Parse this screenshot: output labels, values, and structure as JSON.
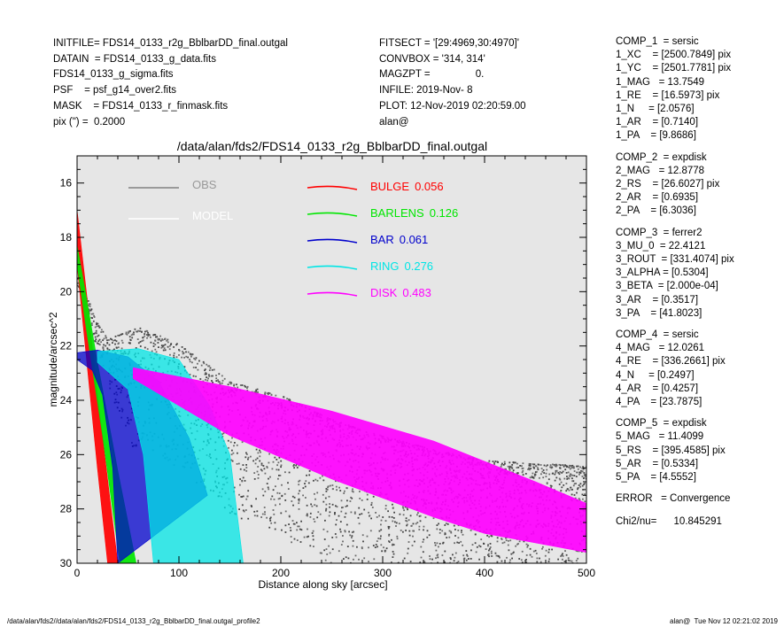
{
  "header_left": [
    "INITFILE= FDS14_0133_r2g_BblbarDD_final.outgal",
    "DATAIN  = FDS14_0133_g_data.fits",
    "FDS14_0133_g_sigma.fits",
    "PSF    = psf_g14_over2.fits",
    "MASK    = FDS14_0133_r_finmask.fits",
    "pix (\") =  0.2000"
  ],
  "header_mid": [
    "FITSECT = '[29:4969,30:4970]'",
    "CONVBOX = '314, 314'",
    "MAGZPT =                0.",
    "INFILE: 2019-Nov- 8",
    "PLOT: 12-Nov-2019 02:20:59.00",
    "alan@"
  ],
  "components": [
    [
      "COMP_1  = sersic",
      "1_XC    = [2500.7849] pix",
      "1_YC    = [2501.7781] pix",
      "1_MAG   = 13.7549",
      "1_RE    = [16.5973] pix",
      "1_N     = [2.0576]",
      "1_AR    = [0.7140]",
      "1_PA    = [9.8686]"
    ],
    [
      "COMP_2  = expdisk",
      "2_MAG   = 12.8778",
      "2_RS    = [26.6027] pix",
      "2_AR    = [0.6935]",
      "2_PA    = [6.3036]"
    ],
    [
      "COMP_3  = ferrer2",
      "3_MU_0  = 22.4121",
      "3_ROUT  = [331.4074] pix",
      "3_ALPHA = [0.5304]",
      "3_BETA  = [2.000e-04]",
      "3_AR    = [0.3517]",
      "3_PA    = [41.8023]"
    ],
    [
      "COMP_4  = sersic",
      "4_MAG   = 12.0261",
      "4_RE    = [336.2661] pix",
      "4_N     = [0.2497]",
      "4_AR    = [0.4257]",
      "4_PA    = [23.7875]"
    ],
    [
      "COMP_5  = expdisk",
      "5_MAG   = 11.4099",
      "5_RS    = [395.4585] pix",
      "5_AR    = [0.5334]",
      "5_PA    = [4.5552]"
    ]
  ],
  "error_line": "ERROR   = Convergence",
  "chi_line": "Chi2/nu=      10.845291",
  "footer_left": "/data/alan/fds2//data/alan/fds2/FDS14_0133_r2g_BblbarDD_final.outgal_profile2",
  "footer_right": "alan@  Tue Nov 12 02:21:02 2019",
  "chart_data": {
    "type": "scatter",
    "title": "/data/alan/fds2/FDS14_0133_r2g_BblbarDD_final.outgal",
    "xlabel": "Distance along sky [arcsec]",
    "ylabel": "magnitude/arcsec^2",
    "xlim": [
      0,
      500
    ],
    "ylim": [
      30,
      15
    ],
    "y_inverted": true,
    "xticks": [
      "0",
      "100",
      "200",
      "300",
      "400",
      "500"
    ],
    "yticks": [
      "16",
      "18",
      "20",
      "22",
      "24",
      "26",
      "28",
      "30"
    ],
    "background": "#e6e6e6",
    "legend_placement": "top",
    "legend_left": [
      {
        "label": "OBS",
        "color": "#808080"
      },
      {
        "label": "MODEL",
        "color": "#ffffff"
      }
    ],
    "legend_right": [
      {
        "label": "BULGE",
        "fraction": "0.056",
        "color": "#ff0000"
      },
      {
        "label": "BARLENS",
        "fraction": "0.126",
        "color": "#00e600"
      },
      {
        "label": "BAR",
        "fraction": "0.061",
        "color": "#0000cc"
      },
      {
        "label": "RING",
        "fraction": "0.276",
        "color": "#00e5e5"
      },
      {
        "label": "DISK",
        "fraction": "0.483",
        "color": "#ff00ff"
      }
    ],
    "series": [
      {
        "name": "BULGE",
        "color": "#ff0000",
        "upper": [
          [
            0,
            17.0
          ],
          [
            10,
            20.3
          ],
          [
            20,
            23.8
          ],
          [
            35,
            28.5
          ],
          [
            40,
            30
          ]
        ],
        "lower": [
          [
            0,
            19.0
          ],
          [
            20,
            26.5
          ],
          [
            30,
            30
          ]
        ]
      },
      {
        "name": "BARLENS",
        "color": "#00e600",
        "upper": [
          [
            0,
            18.3
          ],
          [
            10,
            20.4
          ],
          [
            20,
            22.6
          ],
          [
            40,
            26.6
          ],
          [
            58,
            30
          ]
        ],
        "lower": [
          [
            0,
            19.0
          ],
          [
            10,
            21.6
          ],
          [
            25,
            25.3
          ],
          [
            42,
            30
          ]
        ]
      },
      {
        "name": "BAR",
        "color": "#0000cc",
        "upper": [
          [
            0,
            22.25
          ],
          [
            20,
            22.15
          ],
          [
            50,
            22.4
          ],
          [
            80,
            23.3
          ],
          [
            110,
            25.4
          ],
          [
            128,
            27.5
          ]
        ],
        "lower": [
          [
            0,
            22.5
          ],
          [
            15,
            22.9
          ],
          [
            25,
            23.8
          ],
          [
            35,
            26.5
          ],
          [
            40,
            30
          ]
        ]
      },
      {
        "name": "RING",
        "color": "#00e5e5",
        "upper": [
          [
            20,
            22.2
          ],
          [
            60,
            22.1
          ],
          [
            100,
            22.5
          ],
          [
            130,
            24.2
          ],
          [
            150,
            26.0
          ],
          [
            163,
            30
          ]
        ],
        "lower": [
          [
            20,
            22.6
          ],
          [
            50,
            23.6
          ],
          [
            65,
            26.0
          ],
          [
            75,
            30
          ]
        ]
      },
      {
        "name": "DISK",
        "color": "#ff00ff",
        "upper": [
          [
            55,
            22.8
          ],
          [
            150,
            23.5
          ],
          [
            250,
            24.4
          ],
          [
            350,
            25.5
          ],
          [
            450,
            27.0
          ],
          [
            500,
            27.8
          ]
        ],
        "lower": [
          [
            55,
            23.2
          ],
          [
            150,
            25.3
          ],
          [
            250,
            26.9
          ],
          [
            350,
            28.3
          ],
          [
            400,
            28.9
          ],
          [
            500,
            29.6
          ]
        ]
      }
    ],
    "obs": {
      "name": "OBS",
      "color": "#555555",
      "upper": [
        [
          0,
          19.3
        ],
        [
          20,
          21.2
        ],
        [
          30,
          21.7
        ],
        [
          60,
          21.3
        ],
        [
          100,
          21.9
        ],
        [
          150,
          23.3
        ],
        [
          200,
          23.8
        ],
        [
          250,
          24.7
        ],
        [
          300,
          25.3
        ],
        [
          350,
          25.8
        ],
        [
          400,
          26.2
        ],
        [
          450,
          26.3
        ],
        [
          500,
          26.4
        ]
      ],
      "lower": [
        [
          0,
          19.8
        ],
        [
          20,
          22.2
        ],
        [
          40,
          24.5
        ],
        [
          60,
          26.5
        ],
        [
          80,
          28.0
        ],
        [
          120,
          29.0
        ],
        [
          160,
          30
        ]
      ]
    }
  }
}
